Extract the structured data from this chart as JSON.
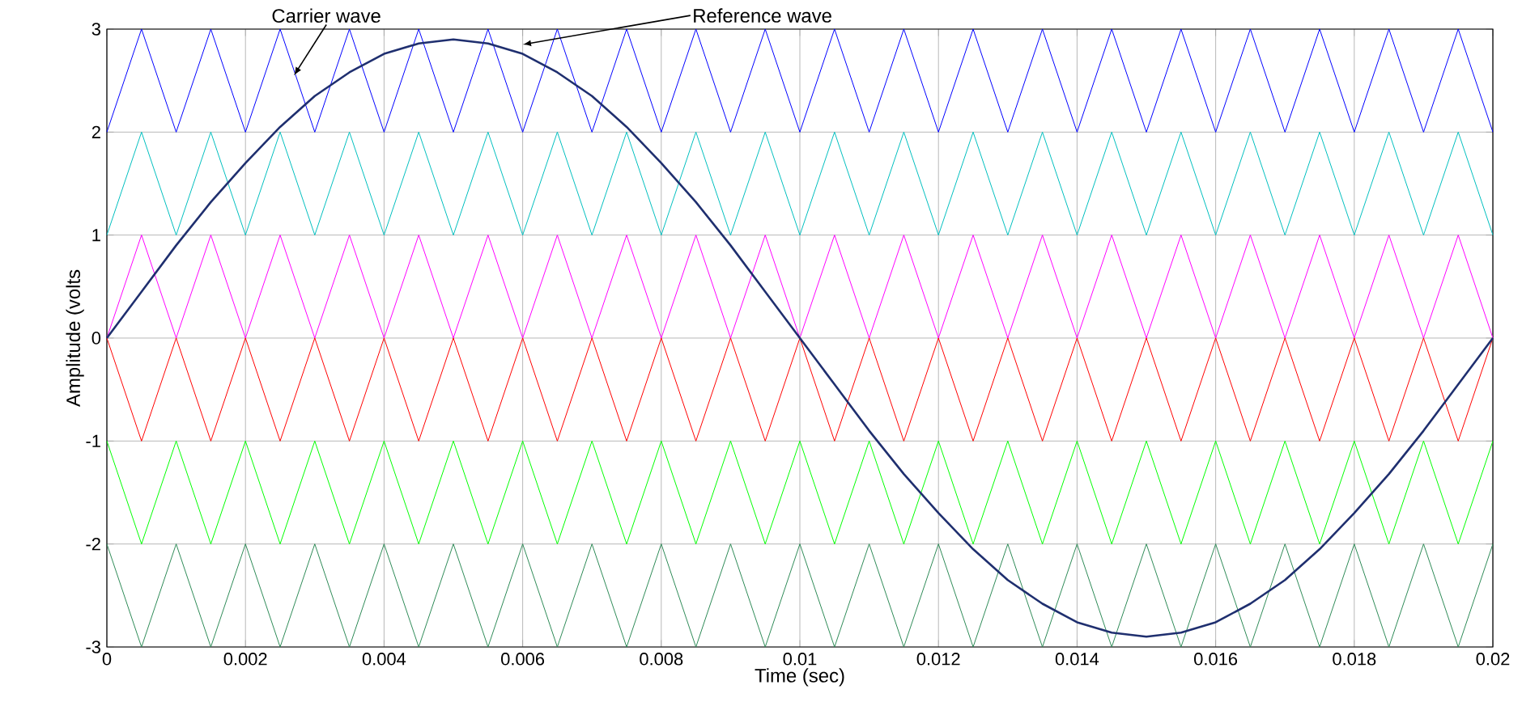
{
  "chart_data": {
    "type": "line",
    "xlabel": "Time (sec)",
    "ylabel": "Amplitude (volts",
    "x": [
      0,
      0.0005,
      0.001,
      0.0015,
      0.002,
      0.0025,
      0.003,
      0.0035,
      0.004,
      0.0045,
      0.005,
      0.0055,
      0.006,
      0.0065,
      0.007,
      0.0075,
      0.008,
      0.0085,
      0.009,
      0.0095,
      0.01,
      0.0105,
      0.011,
      0.0115,
      0.012,
      0.0125,
      0.013,
      0.0135,
      0.014,
      0.0145,
      0.015,
      0.0155,
      0.016,
      0.0165,
      0.017,
      0.0175,
      0.018,
      0.0185,
      0.019,
      0.0195,
      0.02
    ],
    "series": [
      {
        "color": "#0000ff",
        "values": [
          2,
          3,
          2,
          3,
          2,
          3,
          2,
          3,
          2,
          3,
          2,
          3,
          2,
          3,
          2,
          3,
          2,
          3,
          2,
          3,
          2,
          3,
          2,
          3,
          2,
          3,
          2,
          3,
          2,
          3,
          2,
          3,
          2,
          3,
          2,
          3,
          2,
          3,
          2,
          3,
          2
        ]
      },
      {
        "color": "#00bfbf",
        "values": [
          1,
          2,
          1,
          2,
          1,
          2,
          1,
          2,
          1,
          2,
          1,
          2,
          1,
          2,
          1,
          2,
          1,
          2,
          1,
          2,
          1,
          2,
          1,
          2,
          1,
          2,
          1,
          2,
          1,
          2,
          1,
          2,
          1,
          2,
          1,
          2,
          1,
          2,
          1,
          2,
          1
        ]
      },
      {
        "color": "#ff00ff",
        "values": [
          0,
          1,
          0,
          1,
          0,
          1,
          0,
          1,
          0,
          1,
          0,
          1,
          0,
          1,
          0,
          1,
          0,
          1,
          0,
          1,
          0,
          1,
          0,
          1,
          0,
          1,
          0,
          1,
          0,
          1,
          0,
          1,
          0,
          1,
          0,
          1,
          0,
          1,
          0,
          1,
          0
        ]
      },
      {
        "color": "#ff0000",
        "values": [
          0,
          -1,
          0,
          -1,
          0,
          -1,
          0,
          -1,
          0,
          -1,
          0,
          -1,
          0,
          -1,
          0,
          -1,
          0,
          -1,
          0,
          -1,
          0,
          -1,
          0,
          -1,
          0,
          -1,
          0,
          -1,
          0,
          -1,
          0,
          -1,
          0,
          -1,
          0,
          -1,
          0,
          -1,
          0,
          -1,
          0
        ]
      },
      {
        "color": "#00ff00",
        "values": [
          -1,
          -2,
          -1,
          -2,
          -1,
          -2,
          -1,
          -2,
          -1,
          -2,
          -1,
          -2,
          -1,
          -2,
          -1,
          -2,
          -1,
          -2,
          -1,
          -2,
          -1,
          -2,
          -1,
          -2,
          -1,
          -2,
          -1,
          -2,
          -1,
          -2,
          -1,
          -2,
          -1,
          -2,
          -1,
          -2,
          -1,
          -2,
          -1,
          -2,
          -1
        ]
      },
      {
        "color": "#2e8b57",
        "values": [
          -2,
          -3,
          -2,
          -3,
          -2,
          -3,
          -2,
          -3,
          -2,
          -3,
          -2,
          -3,
          -2,
          -3,
          -2,
          -3,
          -2,
          -3,
          -2,
          -3,
          -2,
          -3,
          -2,
          -3,
          -2,
          -3,
          -2,
          -3,
          -2,
          -3,
          -2,
          -3,
          -2,
          -3,
          -2,
          -3,
          -2,
          -3,
          -2,
          -3,
          -2
        ]
      },
      {
        "color": "#1f2f6f",
        "values": [
          0,
          0.45,
          0.9,
          1.32,
          1.7,
          2.05,
          2.35,
          2.58,
          2.76,
          2.86,
          2.9,
          2.86,
          2.76,
          2.58,
          2.35,
          2.05,
          1.7,
          1.32,
          0.9,
          0.45,
          0,
          -0.45,
          -0.9,
          -1.32,
          -1.7,
          -2.05,
          -2.35,
          -2.58,
          -2.76,
          -2.86,
          -2.9,
          -2.86,
          -2.76,
          -2.58,
          -2.35,
          -2.05,
          -1.7,
          -1.32,
          -0.9,
          -0.45,
          0
        ]
      }
    ],
    "xlim": [
      0,
      0.02
    ],
    "ylim": [
      -3,
      3
    ],
    "xticks": [
      0,
      0.002,
      0.004,
      0.006,
      0.008,
      0.01,
      0.012,
      0.014,
      0.016,
      0.018,
      0.02
    ],
    "yticks": [
      -3,
      -2,
      -1,
      0,
      1,
      2,
      3
    ],
    "grid": true,
    "annotations": [
      {
        "text": "Carrier wave",
        "x": 0.0027,
        "y": 2.55
      },
      {
        "text": "Reference wave",
        "x": 0.006,
        "y": 2.85
      }
    ]
  }
}
